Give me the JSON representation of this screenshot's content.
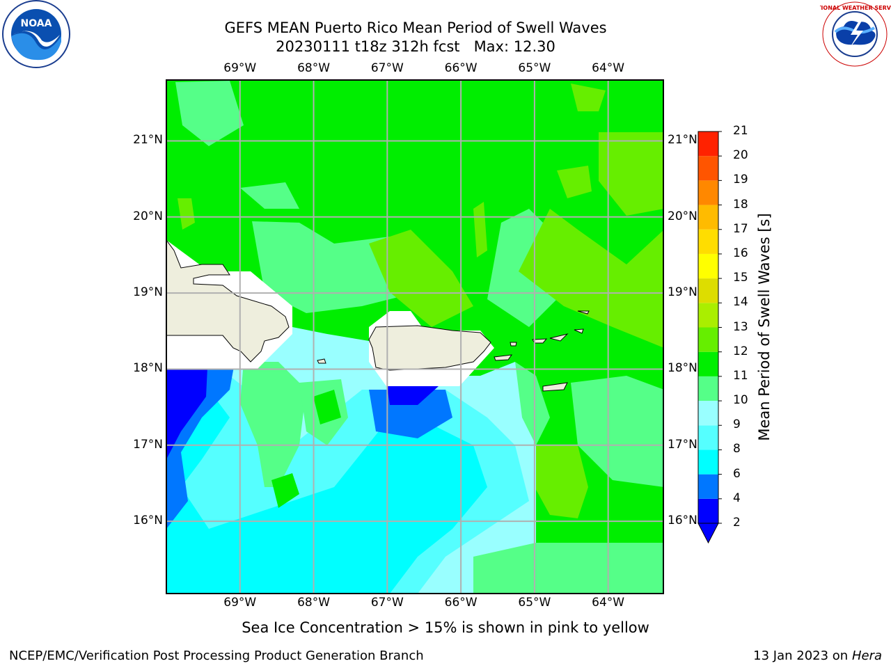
{
  "header": {
    "title_line1": "GEFS MEAN Puerto Rico Mean Period of Swell Waves",
    "title_line2": "20230111 t18z 312h fcst   Max: 12.30"
  },
  "logos": {
    "left_name": "NOAA",
    "right_name": "NATIONAL WEATHER SERVICE"
  },
  "map": {
    "lon_ticks": [
      "69°W",
      "68°W",
      "67°W",
      "66°W",
      "65°W",
      "64°W"
    ],
    "lat_ticks": [
      "21°N",
      "20°N",
      "19°N",
      "18°N",
      "17°N",
      "16°N"
    ],
    "lon_range": [
      -70.0,
      -63.25
    ],
    "lat_range": [
      15.05,
      21.8
    ],
    "grid": true,
    "land_color": "#eeeedd",
    "ocean_base_color": "#00ee00"
  },
  "colorbar": {
    "label": "Mean Period of Swell Waves [s]",
    "levels": [
      "2",
      "4",
      "6",
      "8",
      "9",
      "10",
      "11",
      "12",
      "13",
      "14",
      "15",
      "16",
      "17",
      "18",
      "19",
      "20",
      "21"
    ],
    "colors": [
      "#0000ff",
      "#0077ff",
      "#00ffff",
      "#55ffff",
      "#99ffff",
      "#55ff88",
      "#00ee00",
      "#66ee00",
      "#aaee00",
      "#dddd00",
      "#ffff00",
      "#ffdd00",
      "#ffbb00",
      "#ff8800",
      "#ff5500",
      "#ff2200",
      "#ff0000"
    ],
    "extend_min_color": "#0000ff"
  },
  "footer": {
    "note": "Sea Ice Concentration > 15% is shown in pink to yellow",
    "left": "NCEP/EMC/Verification Post Processing Product Generation Branch",
    "right_date": "13 Jan 2023 on ",
    "right_host": "Hera"
  }
}
